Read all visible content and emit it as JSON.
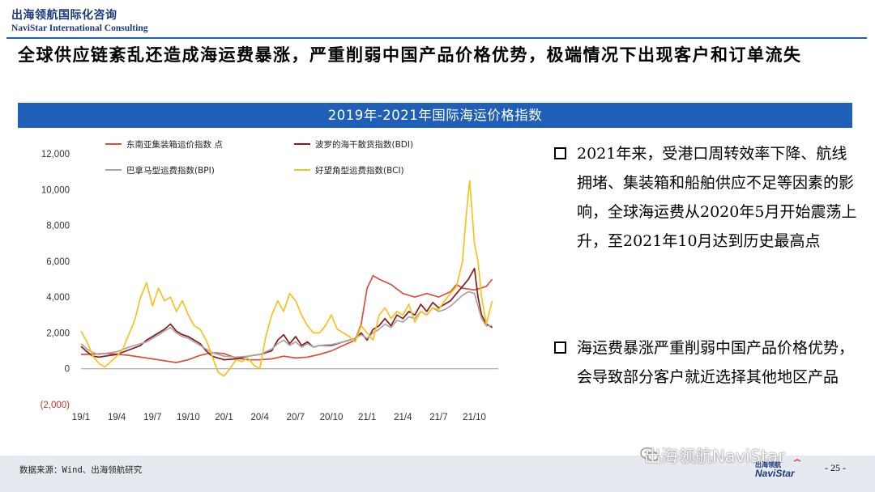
{
  "header": {
    "brand_cn": "出海领航国际化咨询",
    "brand_en": "NaviStar International Consulting"
  },
  "headline": "全球供应链紊乱还造成海运费暴涨，严重削弱中国产品价格优势，极端情况下出现客户和订单流失",
  "banner": "2019年-2021年国际海运价格指数",
  "bullets": [
    {
      "text": "2021年来，受港口周转效率下降、航线拥堵、集装箱和船舶供应不足等因素的影响，全球海运费从2020年5月开始震荡上升，至2021年10月达到历史最高点"
    },
    {
      "text": "海运费暴涨严重削弱中国产品价格优势，会导致部分客户就近选择其他地区产品"
    }
  ],
  "footer": {
    "source": "数据来源：Wind、出海领航研究",
    "watermark": "出海领航NaviStar",
    "page": "- 25 -"
  },
  "chart_data": {
    "type": "line",
    "title": "2019年-2021年国际海运价格指数",
    "ylim": [
      -2000,
      12000
    ],
    "yticks": [
      12000,
      10000,
      8000,
      6000,
      4000,
      2000,
      0,
      -2000
    ],
    "ytick_labels": [
      "12,000",
      "10,000",
      "8,000",
      "6,000",
      "4,000",
      "2,000",
      "0",
      "(2,000)"
    ],
    "xlim": [
      0,
      35
    ],
    "xticks": [
      0,
      3,
      6,
      9,
      12,
      15,
      18,
      21,
      24,
      27,
      30,
      33
    ],
    "xtick_labels": [
      "19/1",
      "19/4",
      "19/7",
      "19/10",
      "20/1",
      "20/4",
      "20/7",
      "20/10",
      "21/1",
      "21/4",
      "21/7",
      "21/10"
    ],
    "legend_position": "top",
    "grid": false,
    "series": [
      {
        "name": "东南亚集装箱运价指数 点",
        "color": "#d7503c",
        "x": [
          0,
          1,
          2,
          3,
          4,
          5,
          6,
          7,
          8,
          9,
          10,
          11,
          12,
          13,
          14,
          15,
          16,
          17,
          18,
          19,
          20,
          21,
          22,
          23,
          23.5,
          24,
          24.5,
          25,
          26,
          27,
          28,
          29,
          30,
          31,
          31.5,
          32,
          33,
          34,
          34.5
        ],
        "values": [
          800,
          820,
          850,
          820,
          750,
          650,
          550,
          450,
          350,
          500,
          750,
          900,
          850,
          600,
          500,
          500,
          550,
          700,
          600,
          650,
          800,
          1000,
          1300,
          1600,
          2500,
          4500,
          5200,
          5000,
          4700,
          4200,
          4000,
          4200,
          4000,
          4300,
          4700,
          4500,
          4400,
          4600,
          5000
        ]
      },
      {
        "name": "波罗的海干散货指数(BDI)",
        "color": "#8b1a1a",
        "x": [
          0,
          0.5,
          1,
          1.5,
          2,
          3,
          4,
          5,
          5.5,
          6,
          6.5,
          7,
          7.5,
          8,
          8.5,
          9,
          9.5,
          10,
          10.5,
          11,
          11.5,
          12,
          13,
          14,
          15,
          15.5,
          16,
          16.5,
          17,
          17.5,
          18,
          18.5,
          19,
          19.5,
          20,
          21,
          22,
          23,
          23.5,
          24,
          24.5,
          25,
          25.5,
          26,
          26.5,
          27,
          27.5,
          28,
          28.5,
          29,
          29.5,
          30,
          30.5,
          31,
          31.5,
          32,
          32.5,
          33,
          33.3,
          33.6,
          34,
          34.5
        ],
        "values": [
          1250,
          950,
          700,
          650,
          700,
          800,
          1050,
          1300,
          1600,
          1800,
          2000,
          2200,
          2500,
          2100,
          1900,
          1800,
          1600,
          1400,
          1000,
          700,
          600,
          500,
          550,
          700,
          800,
          900,
          1000,
          1600,
          1900,
          1400,
          1800,
          1300,
          1500,
          1200,
          1300,
          1300,
          1500,
          1700,
          2000,
          1600,
          2200,
          2400,
          2800,
          2400,
          3000,
          2800,
          3200,
          3000,
          3600,
          3200,
          3700,
          3400,
          3600,
          3800,
          4200,
          4600,
          5000,
          5600,
          4000,
          3000,
          2500,
          2300
        ]
      },
      {
        "name": "巴拿马型运费指数(BPI)",
        "color": "#a6a6a6",
        "x": [
          0,
          0.5,
          1,
          1.5,
          2,
          3,
          4,
          5,
          5.5,
          6,
          6.5,
          7,
          7.5,
          8,
          8.5,
          9,
          9.5,
          10,
          10.5,
          11,
          11.5,
          12,
          13,
          14,
          15,
          15.5,
          16,
          16.5,
          17,
          17.5,
          18,
          18.5,
          19,
          19.5,
          20,
          21,
          22,
          23,
          23.5,
          24,
          24.5,
          25,
          25.5,
          26,
          26.5,
          27,
          27.5,
          28,
          28.5,
          29,
          29.5,
          30,
          30.5,
          31,
          31.5,
          32,
          32.5,
          33,
          33.3,
          33.6,
          34,
          34.5
        ],
        "values": [
          1400,
          1100,
          900,
          800,
          850,
          950,
          1200,
          1400,
          1500,
          1700,
          1900,
          2100,
          2300,
          2000,
          1800,
          1700,
          1500,
          1300,
          1100,
          900,
          800,
          700,
          650,
          700,
          800,
          950,
          1100,
          1400,
          1600,
          1300,
          1500,
          1200,
          1400,
          1200,
          1300,
          1350,
          1500,
          1700,
          1900,
          1700,
          2000,
          2200,
          2500,
          2300,
          2700,
          2600,
          2900,
          2800,
          3200,
          3000,
          3400,
          3200,
          3300,
          3500,
          3800,
          4100,
          4300,
          4200,
          3500,
          2800,
          2400,
          2400
        ]
      },
      {
        "name": "好望角型运费指数(BCI)",
        "color": "#f7c21d",
        "x": [
          0,
          0.5,
          1,
          1.5,
          2,
          2.5,
          3,
          3.5,
          4,
          4.5,
          5,
          5.5,
          6,
          6.5,
          7,
          7.5,
          8,
          8.5,
          9,
          9.5,
          10,
          10.5,
          11,
          11.5,
          12,
          12.5,
          13,
          13.5,
          14,
          14.5,
          15,
          15.5,
          16,
          16.5,
          17,
          17.5,
          18,
          18.5,
          19,
          19.5,
          20,
          20.5,
          21,
          21.5,
          22,
          22.5,
          23,
          23.5,
          24,
          24.5,
          25,
          25.5,
          26,
          26.5,
          27,
          27.5,
          28,
          28.5,
          29,
          29.5,
          30,
          30.5,
          31,
          31.5,
          32,
          32.3,
          32.6,
          33,
          33.3,
          33.6,
          34,
          34.5
        ],
        "values": [
          2100,
          1500,
          700,
          300,
          100,
          400,
          700,
          1100,
          1900,
          2700,
          4000,
          4800,
          3500,
          4500,
          3800,
          4000,
          3200,
          3800,
          3000,
          2400,
          2200,
          1600,
          700,
          -200,
          -400,
          0,
          500,
          400,
          600,
          200,
          0,
          1800,
          3000,
          3800,
          3200,
          4200,
          3800,
          3000,
          2400,
          2000,
          2000,
          2400,
          3000,
          2200,
          2000,
          1800,
          1500,
          2400,
          2000,
          1600,
          3000,
          3400,
          2800,
          3200,
          3000,
          3600,
          2600,
          3200,
          3000,
          3400,
          3300,
          3800,
          4200,
          4600,
          6000,
          8500,
          10500,
          7000,
          6000,
          4000,
          2500,
          3800
        ]
      }
    ]
  }
}
